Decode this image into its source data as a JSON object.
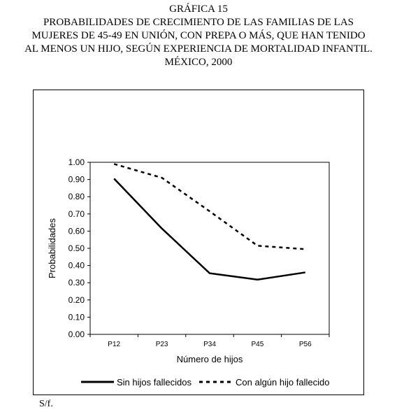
{
  "title_lines": [
    "GRÁFICA 15",
    "PROBABILIDADES DE CRECIMIENTO DE LAS FAMILIAS DE LAS",
    "MUJERES DE 45-49 EN UNIÓN, CON PREPA O MÁS, QUE HAN TENIDO",
    "AL MENOS UN HIJO, SEGÚN EXPERIENCIA DE MORTALIDAD INFANTIL.",
    "MÉXICO, 2000"
  ],
  "source": "S/f.",
  "chart_data": {
    "type": "line",
    "categories": [
      "P12",
      "P23",
      "P34",
      "P45",
      "P56"
    ],
    "series": [
      {
        "name": "Sin hijos fallecidos",
        "values": [
          0.905,
          0.615,
          0.355,
          0.318,
          0.36
        ],
        "style": "solid",
        "color": "#000000"
      },
      {
        "name": "Con algún hijo fallecido",
        "values": [
          0.99,
          0.91,
          0.715,
          0.515,
          0.495
        ],
        "style": "dashed",
        "color": "#000000"
      }
    ],
    "xlabel": "Número de hijos",
    "ylabel": "Probabilidades",
    "ylim": [
      0,
      1
    ],
    "yticks": [
      "0.00",
      "0.10",
      "0.20",
      "0.30",
      "0.40",
      "0.50",
      "0.60",
      "0.70",
      "0.80",
      "0.90",
      "1.00"
    ],
    "grid": false,
    "legend_position": "bottom"
  }
}
